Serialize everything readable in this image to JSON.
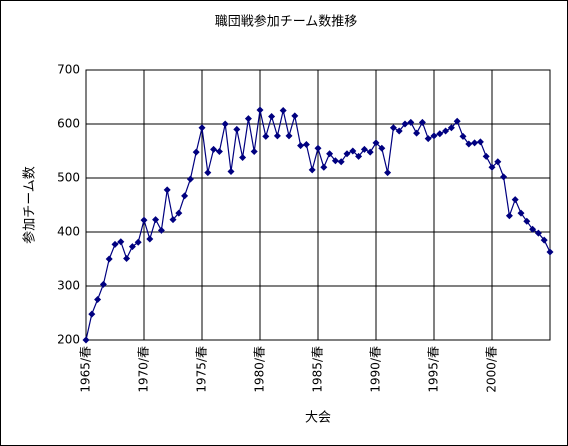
{
  "chart_data": {
    "type": "line",
    "title": "職団戦参加チーム数推移",
    "x_label": "大会",
    "y_label": "参加チーム数",
    "categories": [
      "1965/春",
      null,
      null,
      null,
      null,
      null,
      null,
      null,
      null,
      null,
      "1970/春",
      null,
      null,
      null,
      null,
      null,
      null,
      null,
      null,
      null,
      "1975/春",
      null,
      null,
      null,
      null,
      null,
      null,
      null,
      null,
      null,
      "1980/春",
      null,
      null,
      null,
      null,
      null,
      null,
      null,
      null,
      null,
      "1985/春",
      null,
      null,
      null,
      null,
      null,
      null,
      null,
      null,
      null,
      "1990/春",
      null,
      null,
      null,
      null,
      null,
      null,
      null,
      null,
      null,
      "1995/春",
      null,
      null,
      null,
      null,
      null,
      null,
      null,
      null,
      null,
      "2000/春",
      null,
      null,
      null,
      null,
      null,
      null,
      null,
      null,
      null,
      null
    ],
    "values": [
      200,
      248,
      275,
      303,
      350,
      377,
      382,
      351,
      373,
      381,
      422,
      387,
      423,
      403,
      478,
      423,
      435,
      467,
      498,
      548,
      593,
      510,
      553,
      549,
      600,
      512,
      590,
      538,
      610,
      549,
      626,
      577,
      614,
      578,
      625,
      578,
      615,
      560,
      562,
      515,
      555,
      520,
      545,
      532,
      530,
      545,
      550,
      540,
      553,
      548,
      565,
      555,
      510,
      593,
      587,
      600,
      603,
      583,
      603,
      573,
      578,
      582,
      587,
      593,
      605,
      577,
      563,
      565,
      567,
      540,
      520,
      530,
      502,
      430,
      460,
      435,
      420,
      405,
      398,
      385,
      363
    ],
    "color": "#000080",
    "ylim": [
      200,
      700
    ],
    "yticks": [
      200,
      300,
      400,
      500,
      600,
      700
    ],
    "grid": true
  }
}
